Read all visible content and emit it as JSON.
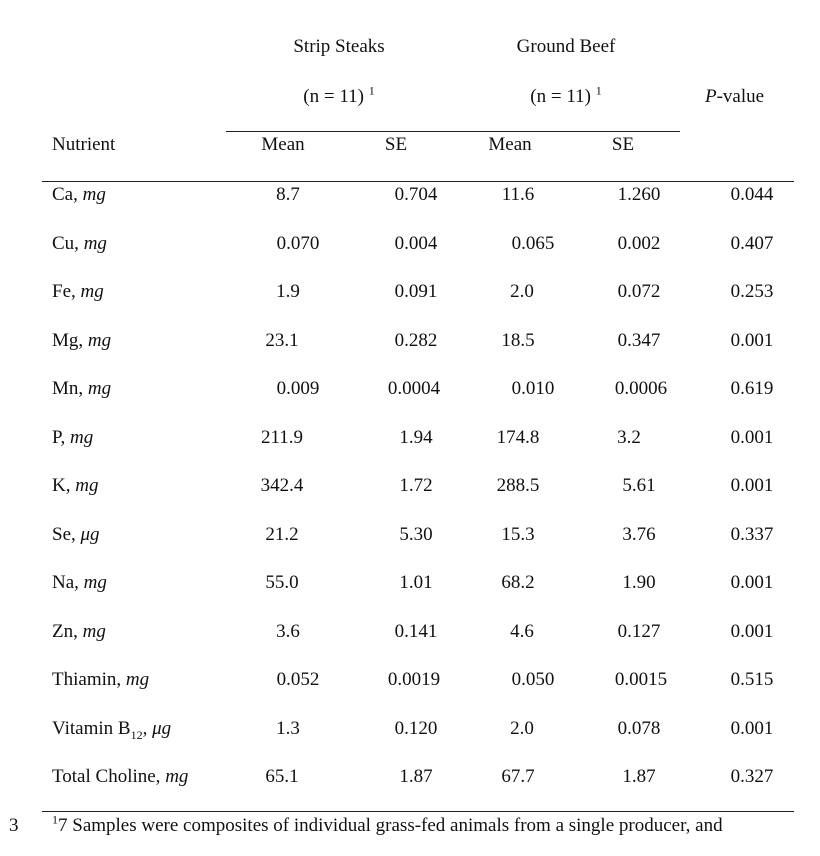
{
  "header": {
    "group1_label": "Strip Steaks",
    "group1_n": "(n = 11)",
    "group1_n_sup": "1",
    "group2_label": "Ground Beef",
    "group2_n": "(n = 11)",
    "group2_n_sup": "1",
    "pvalue_italic": "P",
    "pvalue_rest": "-value",
    "nutrient_label": "Nutrient",
    "mean1": "Mean",
    "se1": "SE",
    "mean2": "Mean",
    "se2": "SE"
  },
  "rows": [
    {
      "name": "Ca, ",
      "unit": "mg",
      "sub": "",
      "after": "",
      "mean1": "8.7",
      "se1": "0.704",
      "mean2": "11.6",
      "se2": "1.260",
      "p": "0.044"
    },
    {
      "name": "Cu, ",
      "unit": "mg",
      "sub": "",
      "after": "",
      "mean1": "0.070",
      "se1": "0.004",
      "mean2": "0.065",
      "se2": "0.002",
      "p": "0.407"
    },
    {
      "name": "Fe, ",
      "unit": "mg",
      "sub": "",
      "after": "",
      "mean1": "1.9",
      "se1": "0.091",
      "mean2": "2.0",
      "se2": "0.072",
      "p": "0.253"
    },
    {
      "name": "Mg, ",
      "unit": "mg",
      "sub": "",
      "after": "",
      "mean1": "23.1",
      "se1": "0.282",
      "mean2": "18.5",
      "se2": "0.347",
      "p": "0.001"
    },
    {
      "name": "Mn, ",
      "unit": "mg",
      "sub": "",
      "after": "",
      "mean1": "0.009",
      "se1": "0.0004",
      "mean2": "0.010",
      "se2": "0.0006",
      "p": "0.619"
    },
    {
      "name": "P, ",
      "unit": "mg",
      "sub": "",
      "after": "",
      "mean1": "211.9",
      "se1": "1.94",
      "mean2": "174.8",
      "se2": "3.2",
      "p": "0.001"
    },
    {
      "name": "K, ",
      "unit": "mg",
      "sub": "",
      "after": "",
      "mean1": "342.4",
      "se1": "1.72",
      "mean2": "288.5",
      "se2": "5.61",
      "p": "0.001"
    },
    {
      "name": "Se, ",
      "unit": "μg",
      "sub": "",
      "after": "",
      "mean1": "21.2",
      "se1": "5.30",
      "mean2": "15.3",
      "se2": "3.76",
      "p": "0.337"
    },
    {
      "name": "Na, ",
      "unit": "mg",
      "sub": "",
      "after": "",
      "mean1": "55.0",
      "se1": "1.01",
      "mean2": "68.2",
      "se2": "1.90",
      "p": "0.001"
    },
    {
      "name": "Zn, ",
      "unit": "mg",
      "sub": "",
      "after": "",
      "mean1": "3.6",
      "se1": "0.141",
      "mean2": "4.6",
      "se2": "0.127",
      "p": "0.001"
    },
    {
      "name": "Thiamin, ",
      "unit": "mg",
      "sub": "",
      "after": "",
      "mean1": "0.052",
      "se1": "0.0019",
      "mean2": "0.050",
      "se2": "0.0015",
      "p": "0.515"
    },
    {
      "name": "Vitamin B",
      "unit": "μg",
      "sub": "12",
      "after": ", ",
      "mean1": "1.3",
      "se1": "0.120",
      "mean2": "2.0",
      "se2": "0.078",
      "p": "0.001"
    },
    {
      "name": "Total Choline, ",
      "unit": "mg",
      "sub": "",
      "after": "",
      "mean1": "65.1",
      "se1": "1.87",
      "mean2": "67.7",
      "se2": "1.87",
      "p": "0.327"
    }
  ],
  "footnote": {
    "line_number": "3",
    "marker": "1",
    "text": "7 Samples were composites of individual grass-fed animals from a single producer, and"
  }
}
